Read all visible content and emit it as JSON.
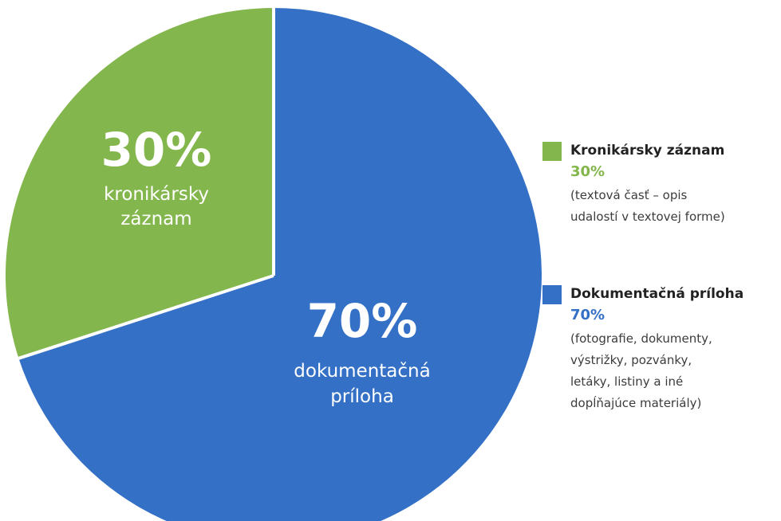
{
  "chart_data": {
    "type": "pie",
    "title": "",
    "slices": [
      {
        "pct_label": "30%",
        "inside_label": [
          "kronikársky",
          "záznam"
        ],
        "value": 30,
        "color": "#83b64c",
        "legend_title": "Kronikársky záznam",
        "legend_desc": "(textová časť – opis\nudalostí v textovej forme)"
      },
      {
        "pct_label": "70%",
        "inside_label": [
          "dokumentačná",
          "príloha"
        ],
        "value": 70,
        "color": "#3370c6",
        "legend_title": "Dokumentačná príloha",
        "legend_desc": "(fotografie, dokumenty,\nvýstrižky, pozvánky,\nletáky, listiny a iné\ndopĺňajúce materiály)"
      }
    ],
    "legend_position": "right"
  },
  "colors": {
    "green": "#83b64c",
    "blue": "#3370c6",
    "divider": "#ffffff"
  }
}
